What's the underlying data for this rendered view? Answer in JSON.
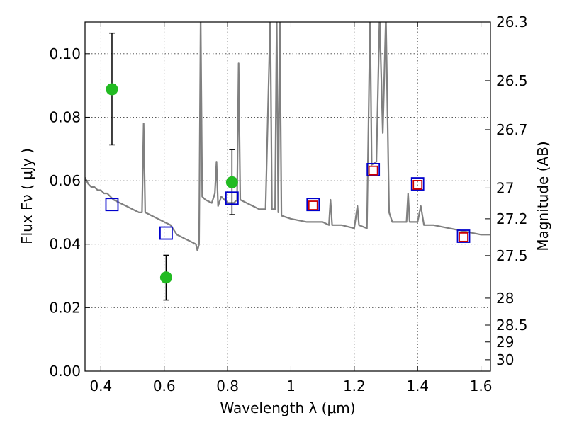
{
  "chart_data": {
    "type": "scatter",
    "title": "",
    "xlabel": "Wavelength  λ (μm)",
    "ylabel": "Flux  Fν  ( μJy )",
    "y2label": "Magnitude (AB)",
    "xlim": [
      0.35,
      1.63
    ],
    "ylim": [
      0.0,
      0.11
    ],
    "grid": true,
    "x_ticks": [
      0.4,
      0.6,
      0.8,
      1.0,
      1.2,
      1.4,
      1.6
    ],
    "x_tick_labels": [
      "0.4",
      "0.6",
      "0.8",
      "1",
      "1.2",
      "1.4",
      "1.6"
    ],
    "y_ticks": [
      0.0,
      0.02,
      0.04,
      0.06,
      0.08,
      0.1
    ],
    "y_tick_labels": [
      "0.00",
      "0.02",
      "0.04",
      "0.06",
      "0.08",
      "0.10"
    ],
    "y2_ticks": [
      {
        "label": "26.3",
        "flux": 0.11
      },
      {
        "label": "26.5",
        "flux": 0.0915
      },
      {
        "label": "26.7",
        "flux": 0.0761
      },
      {
        "label": "27",
        "flux": 0.0577
      },
      {
        "label": "27.2",
        "flux": 0.048
      },
      {
        "label": "27.5",
        "flux": 0.0364
      },
      {
        "label": "28",
        "flux": 0.023
      },
      {
        "label": "28.5",
        "flux": 0.0145
      },
      {
        "label": "29",
        "flux": 0.0092
      },
      {
        "label": "30",
        "flux": 0.0036
      }
    ],
    "series": [
      {
        "kind": "spectrum",
        "color": "#808080",
        "points": [
          [
            0.35,
            0.061
          ],
          [
            0.36,
            0.059
          ],
          [
            0.37,
            0.058
          ],
          [
            0.38,
            0.058
          ],
          [
            0.39,
            0.057
          ],
          [
            0.4,
            0.057
          ],
          [
            0.41,
            0.056
          ],
          [
            0.42,
            0.056
          ],
          [
            0.43,
            0.055
          ],
          [
            0.44,
            0.054
          ],
          [
            0.46,
            0.053
          ],
          [
            0.48,
            0.052
          ],
          [
            0.5,
            0.051
          ],
          [
            0.52,
            0.05
          ],
          [
            0.53,
            0.05
          ],
          [
            0.535,
            0.078
          ],
          [
            0.54,
            0.05
          ],
          [
            0.56,
            0.049
          ],
          [
            0.58,
            0.048
          ],
          [
            0.6,
            0.047
          ],
          [
            0.62,
            0.046
          ],
          [
            0.64,
            0.043
          ],
          [
            0.66,
            0.042
          ],
          [
            0.68,
            0.041
          ],
          [
            0.7,
            0.04
          ],
          [
            0.705,
            0.038
          ],
          [
            0.71,
            0.04
          ],
          [
            0.715,
            0.112
          ],
          [
            0.72,
            0.055
          ],
          [
            0.73,
            0.054
          ],
          [
            0.75,
            0.053
          ],
          [
            0.76,
            0.056
          ],
          [
            0.765,
            0.066
          ],
          [
            0.77,
            0.052
          ],
          [
            0.78,
            0.055
          ],
          [
            0.79,
            0.054
          ],
          [
            0.8,
            0.053
          ],
          [
            0.82,
            0.053
          ],
          [
            0.83,
            0.054
          ],
          [
            0.835,
            0.097
          ],
          [
            0.84,
            0.054
          ],
          [
            0.86,
            0.053
          ],
          [
            0.88,
            0.052
          ],
          [
            0.9,
            0.051
          ],
          [
            0.92,
            0.051
          ],
          [
            0.935,
            0.112
          ],
          [
            0.94,
            0.051
          ],
          [
            0.95,
            0.051
          ],
          [
            0.955,
            0.112
          ],
          [
            0.96,
            0.05
          ],
          [
            0.965,
            0.112
          ],
          [
            0.97,
            0.049
          ],
          [
            1.0,
            0.048
          ],
          [
            1.05,
            0.047
          ],
          [
            1.1,
            0.047
          ],
          [
            1.12,
            0.046
          ],
          [
            1.125,
            0.054
          ],
          [
            1.13,
            0.046
          ],
          [
            1.16,
            0.046
          ],
          [
            1.2,
            0.045
          ],
          [
            1.21,
            0.052
          ],
          [
            1.215,
            0.046
          ],
          [
            1.24,
            0.045
          ],
          [
            1.25,
            0.112
          ],
          [
            1.255,
            0.065
          ],
          [
            1.27,
            0.066
          ],
          [
            1.28,
            0.112
          ],
          [
            1.29,
            0.075
          ],
          [
            1.3,
            0.112
          ],
          [
            1.31,
            0.05
          ],
          [
            1.32,
            0.047
          ],
          [
            1.35,
            0.047
          ],
          [
            1.365,
            0.047
          ],
          [
            1.37,
            0.056
          ],
          [
            1.375,
            0.047
          ],
          [
            1.4,
            0.047
          ],
          [
            1.41,
            0.052
          ],
          [
            1.42,
            0.046
          ],
          [
            1.45,
            0.046
          ],
          [
            1.5,
            0.045
          ],
          [
            1.55,
            0.044
          ],
          [
            1.6,
            0.043
          ],
          [
            1.63,
            0.043
          ]
        ]
      },
      {
        "kind": "photometry",
        "marker": "circle",
        "color": "#22bb22",
        "points": [
          {
            "x": 0.435,
            "y": 0.0888,
            "err_low": 0.0713,
            "err_high": 0.1065
          },
          {
            "x": 0.606,
            "y": 0.0295,
            "err_low": 0.0224,
            "err_high": 0.0365
          },
          {
            "x": 0.814,
            "y": 0.0595,
            "err_low": 0.0493,
            "err_high": 0.0698
          }
        ]
      },
      {
        "kind": "model_fluxes",
        "marker": "square",
        "color": "#0000cc",
        "points": [
          {
            "x": 0.435,
            "y": 0.0525
          },
          {
            "x": 0.606,
            "y": 0.0435
          },
          {
            "x": 0.814,
            "y": 0.0545
          },
          {
            "x": 1.07,
            "y": 0.0525
          },
          {
            "x": 1.26,
            "y": 0.0635
          },
          {
            "x": 1.4,
            "y": 0.059
          },
          {
            "x": 1.545,
            "y": 0.0425
          }
        ]
      },
      {
        "kind": "model_fluxes",
        "marker": "square",
        "color": "#cc0000",
        "points": [
          {
            "x": 1.07,
            "y": 0.0522
          },
          {
            "x": 1.26,
            "y": 0.0632
          },
          {
            "x": 1.4,
            "y": 0.0587
          },
          {
            "x": 1.545,
            "y": 0.0422
          }
        ]
      }
    ]
  }
}
